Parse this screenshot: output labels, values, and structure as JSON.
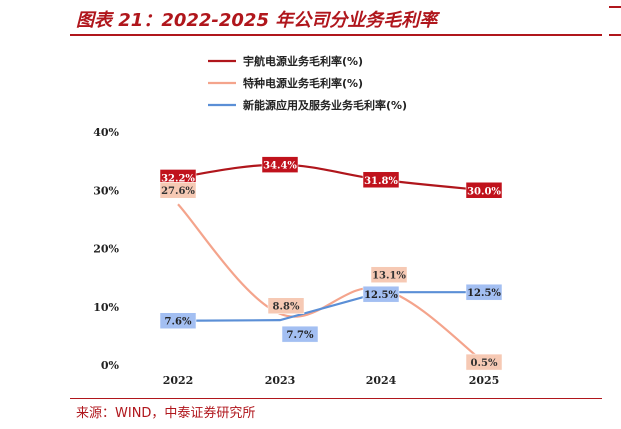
{
  "figure": {
    "title": "图表 21：2022-2025 年公司分业务毛利率",
    "source": "来源：WIND，中泰证券研究所"
  },
  "chart_data": {
    "type": "line",
    "categories": [
      "2022",
      "2023",
      "2024",
      "2025"
    ],
    "y_ticks": [
      "0%",
      "10%",
      "20%",
      "30%",
      "40%"
    ],
    "ylim": [
      0,
      40
    ],
    "grid": false,
    "legend_position": "top",
    "series": [
      {
        "name": "宇航电源业务毛利率(%)",
        "color": "#b0161c",
        "label_fill": "#c0121c",
        "label_text_color": "#ffffff",
        "values": [
          32.2,
          34.4,
          31.8,
          30.0
        ],
        "labels": [
          "32.2%",
          "34.4%",
          "31.8%",
          "30.0%"
        ]
      },
      {
        "name": "特种电源业务毛利率(%)",
        "color": "#f4a48c",
        "label_fill": "#f6c9b4",
        "label_text_color": "#333333",
        "values": [
          27.6,
          8.8,
          13.1,
          0.5
        ],
        "labels": [
          "27.6%",
          "8.8%",
          "13.1%",
          "0.5%"
        ]
      },
      {
        "name": "新能源应用及服务业务毛利率(%)",
        "color": "#5b8fd6",
        "label_fill": "#a3bff2",
        "label_text_color": "#222222",
        "values": [
          7.6,
          7.7,
          12.5,
          12.5
        ],
        "labels": [
          "7.6%",
          "7.7%",
          "12.5%",
          "12.5%"
        ]
      }
    ]
  }
}
